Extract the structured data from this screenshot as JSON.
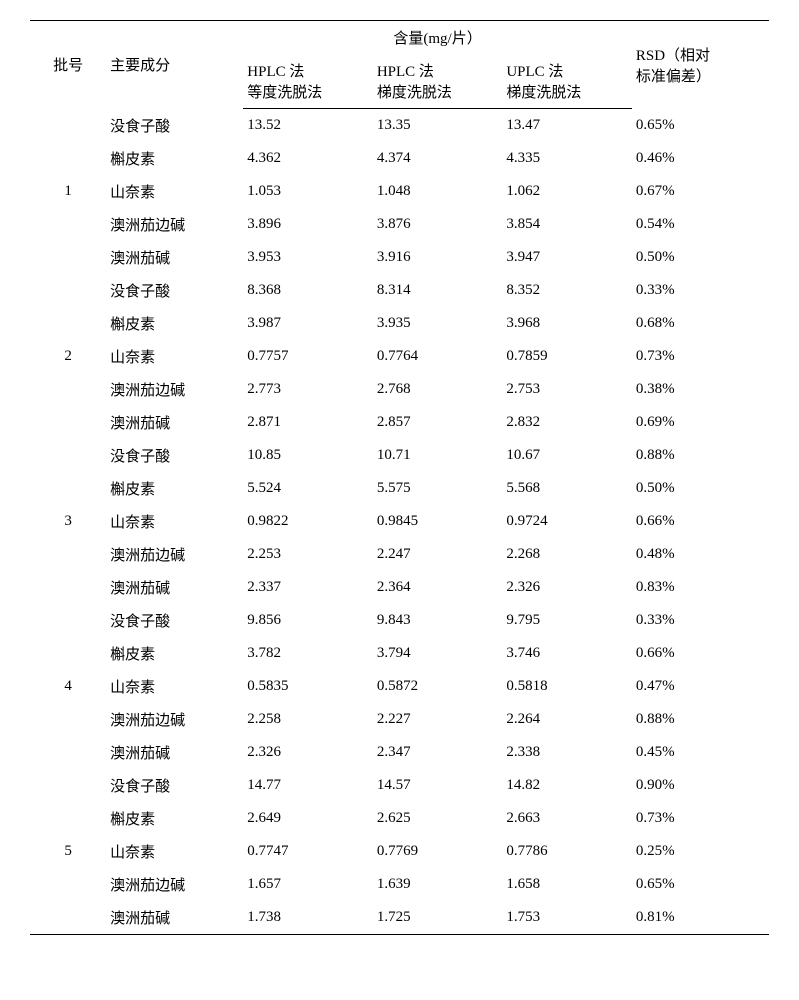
{
  "header": {
    "batch": "批号",
    "component": "主要成分",
    "unit_header": "含量(mg/片）",
    "rsd_l1": "RSD（相对",
    "rsd_l2": "标准偏差）",
    "m1_l1": "HPLC 法",
    "m1_l2": "等度洗脱法",
    "m2_l1": "HPLC 法",
    "m2_l2": "梯度洗脱法",
    "m3_l1": "UPLC 法",
    "m3_l2": "梯度洗脱法"
  },
  "components": [
    "没食子酸",
    "槲皮素",
    "山奈素",
    "澳洲茄边碱",
    "澳洲茄碱"
  ],
  "batches": [
    {
      "id": "1",
      "rows": [
        {
          "v1": "13.52",
          "v2": "13.35",
          "v3": "13.47",
          "rsd": "0.65%"
        },
        {
          "v1": "4.362",
          "v2": "4.374",
          "v3": "4.335",
          "rsd": "0.46%"
        },
        {
          "v1": "1.053",
          "v2": "1.048",
          "v3": "1.062",
          "rsd": "0.67%"
        },
        {
          "v1": "3.896",
          "v2": "3.876",
          "v3": "3.854",
          "rsd": "0.54%"
        },
        {
          "v1": "3.953",
          "v2": "3.916",
          "v3": "3.947",
          "rsd": "0.50%"
        }
      ]
    },
    {
      "id": "2",
      "rows": [
        {
          "v1": "8.368",
          "v2": "8.314",
          "v3": "8.352",
          "rsd": "0.33%"
        },
        {
          "v1": "3.987",
          "v2": "3.935",
          "v3": "3.968",
          "rsd": "0.68%"
        },
        {
          "v1": "0.7757",
          "v2": "0.7764",
          "v3": "0.7859",
          "rsd": "0.73%"
        },
        {
          "v1": "2.773",
          "v2": "2.768",
          "v3": "2.753",
          "rsd": "0.38%"
        },
        {
          "v1": "2.871",
          "v2": "2.857",
          "v3": "2.832",
          "rsd": "0.69%"
        }
      ]
    },
    {
      "id": "3",
      "rows": [
        {
          "v1": "10.85",
          "v2": "10.71",
          "v3": "10.67",
          "rsd": "0.88%"
        },
        {
          "v1": "5.524",
          "v2": "5.575",
          "v3": "5.568",
          "rsd": "0.50%"
        },
        {
          "v1": "0.9822",
          "v2": "0.9845",
          "v3": "0.9724",
          "rsd": "0.66%"
        },
        {
          "v1": "2.253",
          "v2": "2.247",
          "v3": "2.268",
          "rsd": "0.48%"
        },
        {
          "v1": "2.337",
          "v2": "2.364",
          "v3": "2.326",
          "rsd": "0.83%"
        }
      ]
    },
    {
      "id": "4",
      "rows": [
        {
          "v1": "9.856",
          "v2": "9.843",
          "v3": "9.795",
          "rsd": "0.33%"
        },
        {
          "v1": "3.782",
          "v2": "3.794",
          "v3": "3.746",
          "rsd": "0.66%"
        },
        {
          "v1": "0.5835",
          "v2": "0.5872",
          "v3": "0.5818",
          "rsd": "0.47%"
        },
        {
          "v1": "2.258",
          "v2": "2.227",
          "v3": "2.264",
          "rsd": "0.88%"
        },
        {
          "v1": "2.326",
          "v2": "2.347",
          "v3": "2.338",
          "rsd": "0.45%"
        }
      ]
    },
    {
      "id": "5",
      "rows": [
        {
          "v1": "14.77",
          "v2": "14.57",
          "v3": "14.82",
          "rsd": "0.90%"
        },
        {
          "v1": "2.649",
          "v2": "2.625",
          "v3": "2.663",
          "rsd": "0.73%"
        },
        {
          "v1": "0.7747",
          "v2": "0.7769",
          "v3": "0.7786",
          "rsd": "0.25%"
        },
        {
          "v1": "1.657",
          "v2": "1.639",
          "v3": "1.658",
          "rsd": "0.65%"
        },
        {
          "v1": "1.738",
          "v2": "1.725",
          "v3": "1.753",
          "rsd": "0.81%"
        }
      ]
    }
  ]
}
